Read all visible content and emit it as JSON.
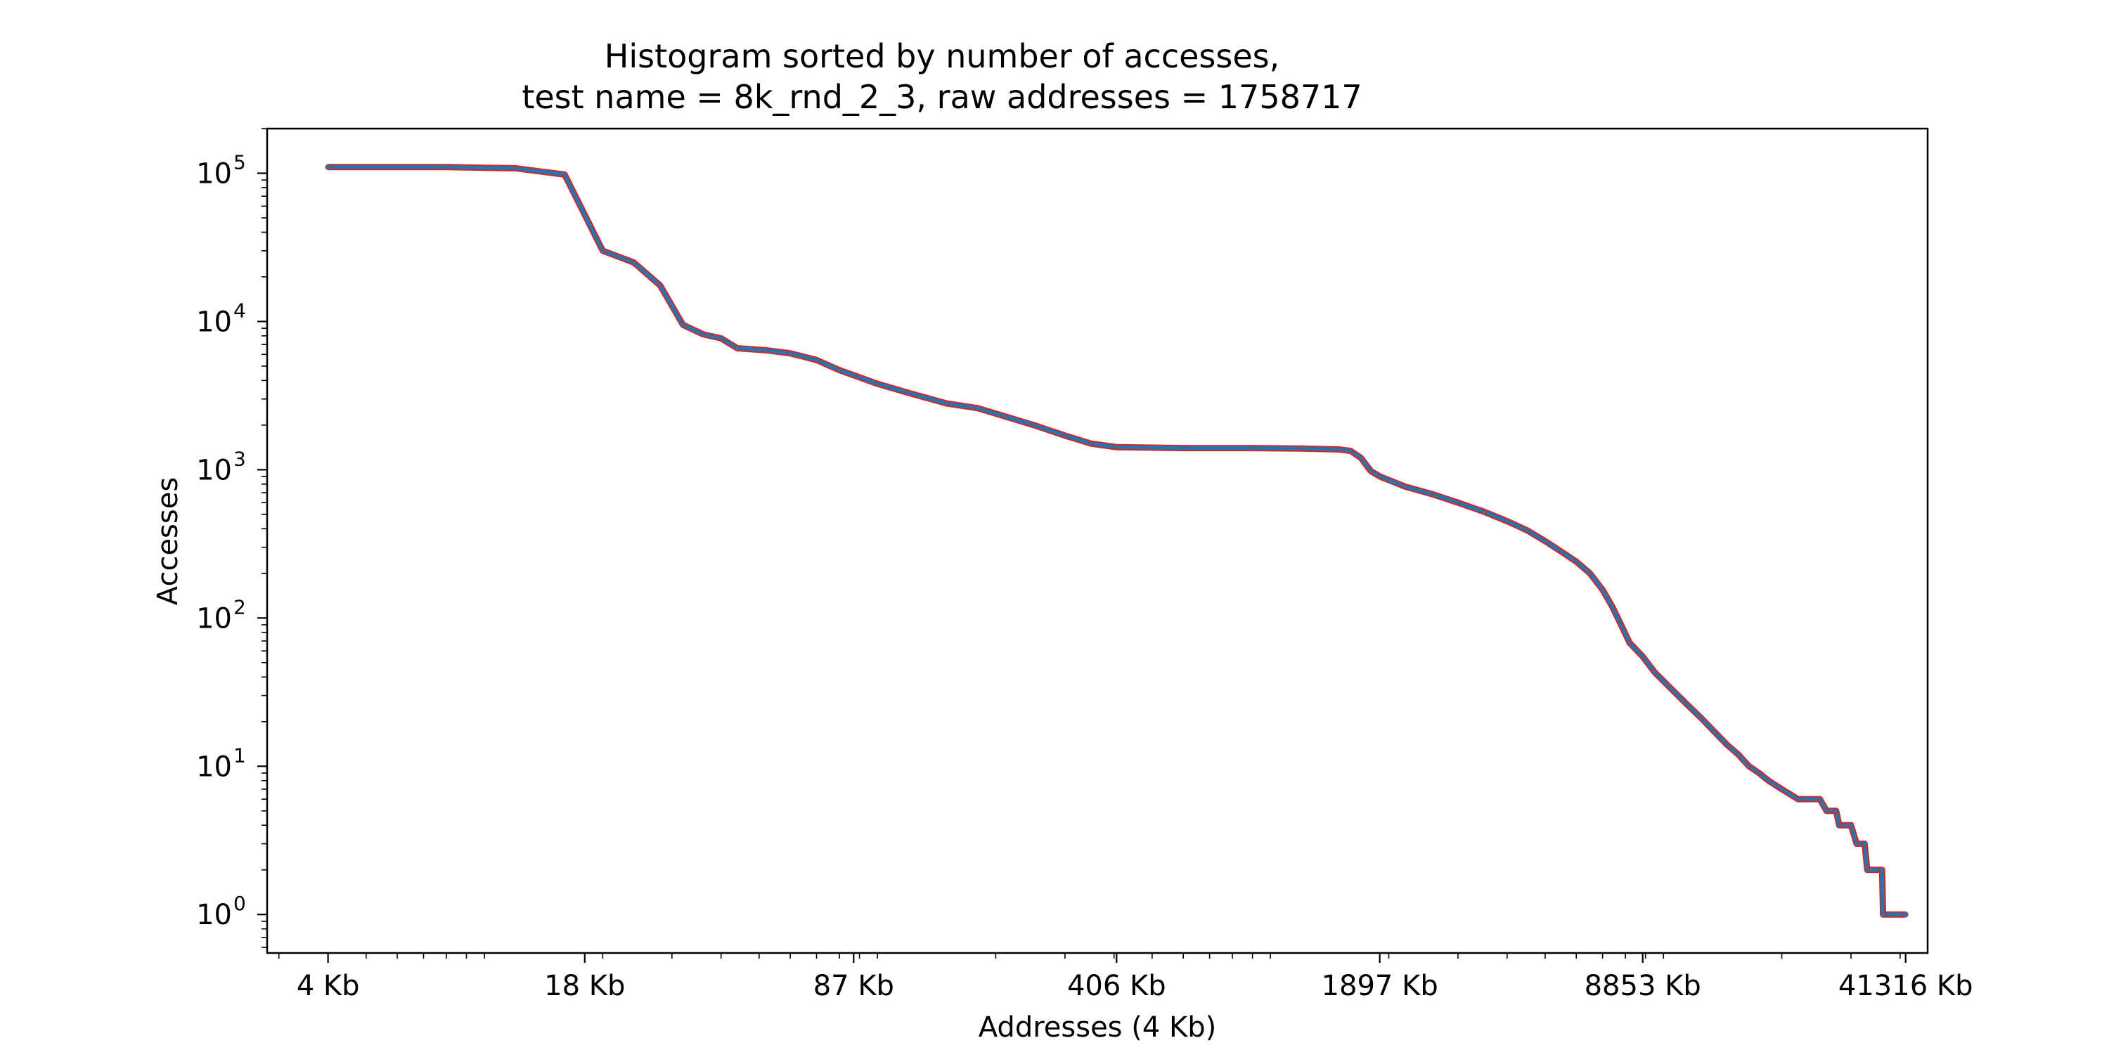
{
  "chart_data": {
    "type": "line",
    "title": "Histogram sorted by number of accesses,",
    "subtitle": "test name = 8k_rnd_2_3, raw addresses = 1758717",
    "xlabel": "Addresses (4 Kb)",
    "ylabel": "Accesses",
    "xscale": "log",
    "yscale": "log",
    "xlim": [
      2.8,
      47000
    ],
    "ylim": [
      0.55,
      200000
    ],
    "grid": false,
    "legend": "none",
    "x_ticks": [
      4,
      18,
      87,
      406,
      1897,
      8853,
      41316
    ],
    "x_tick_labels": [
      "4 Kb",
      "18 Kb",
      "87 Kb",
      "406 Kb",
      "1897 Kb",
      "8853 Kb",
      "41316 Kb"
    ],
    "y_ticks": [
      1,
      10,
      100,
      1000,
      10000,
      100000
    ],
    "y_tick_base": [
      "10",
      "10",
      "10",
      "10",
      "10",
      "10"
    ],
    "y_tick_exponents": [
      "0",
      "1",
      "2",
      "3",
      "4",
      "5"
    ],
    "series": [
      {
        "color": "#1f77b4",
        "marker_color": "#d62728",
        "points": [
          [
            4,
            110000
          ],
          [
            8,
            110000
          ],
          [
            12,
            108000
          ],
          [
            16,
            98000
          ],
          [
            20,
            30000
          ],
          [
            24,
            25000
          ],
          [
            28,
            17500
          ],
          [
            32,
            9500
          ],
          [
            36,
            8200
          ],
          [
            40,
            7700
          ],
          [
            44,
            6600
          ],
          [
            52,
            6400
          ],
          [
            60,
            6100
          ],
          [
            70,
            5500
          ],
          [
            80,
            4700
          ],
          [
            90,
            4200
          ],
          [
            100,
            3800
          ],
          [
            120,
            3300
          ],
          [
            150,
            2800
          ],
          [
            180,
            2600
          ],
          [
            210,
            2300
          ],
          [
            250,
            2000
          ],
          [
            300,
            1700
          ],
          [
            350,
            1500
          ],
          [
            406,
            1420
          ],
          [
            600,
            1400
          ],
          [
            900,
            1400
          ],
          [
            1200,
            1390
          ],
          [
            1500,
            1370
          ],
          [
            1600,
            1340
          ],
          [
            1700,
            1200
          ],
          [
            1800,
            980
          ],
          [
            1900,
            900
          ],
          [
            2200,
            770
          ],
          [
            2600,
            680
          ],
          [
            3000,
            600
          ],
          [
            3500,
            520
          ],
          [
            4000,
            450
          ],
          [
            4500,
            390
          ],
          [
            5000,
            330
          ],
          [
            5500,
            280
          ],
          [
            6000,
            240
          ],
          [
            6500,
            200
          ],
          [
            7000,
            155
          ],
          [
            7400,
            120
          ],
          [
            7800,
            90
          ],
          [
            8200,
            68
          ],
          [
            8853,
            55
          ],
          [
            9500,
            43
          ],
          [
            10500,
            33
          ],
          [
            11500,
            26
          ],
          [
            12500,
            21
          ],
          [
            13500,
            17
          ],
          [
            14500,
            14
          ],
          [
            15500,
            12
          ],
          [
            16500,
            10
          ],
          [
            17500,
            9
          ],
          [
            18500,
            8
          ],
          [
            20000,
            7
          ],
          [
            22000,
            6
          ],
          [
            25000,
            6
          ],
          [
            26000,
            5
          ],
          [
            27500,
            5
          ],
          [
            28000,
            4
          ],
          [
            30000,
            4
          ],
          [
            31000,
            3
          ],
          [
            32500,
            3
          ],
          [
            33000,
            2
          ],
          [
            36000,
            2
          ],
          [
            36200,
            1
          ],
          [
            41316,
            1
          ]
        ]
      }
    ]
  }
}
